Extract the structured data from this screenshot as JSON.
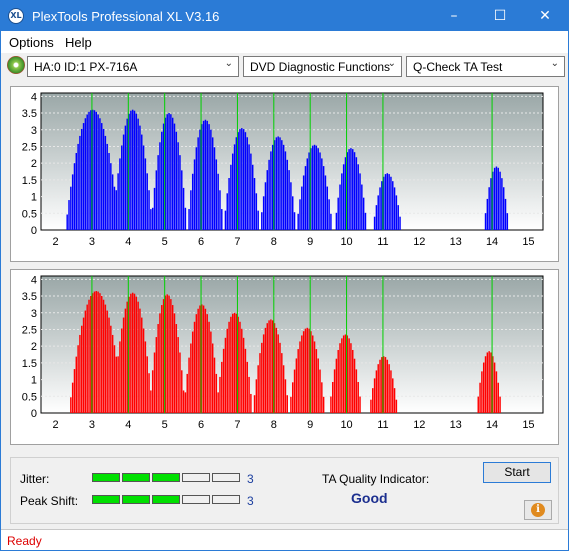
{
  "window": {
    "title": "PlexTools Professional XL V3.16",
    "icon_text": "XL",
    "controls": {
      "minimize": "–",
      "maximize": "☐",
      "close": "✕"
    }
  },
  "menu": {
    "items": [
      "Options",
      "Help"
    ]
  },
  "toolbar": {
    "drive": "HA:0 ID:1  PX-716A",
    "function": "DVD Diagnostic Functions",
    "test": "Q-Check TA Test",
    "arrow": "⌄"
  },
  "charts": {
    "x_ticks": [
      "2",
      "3",
      "4",
      "5",
      "6",
      "7",
      "8",
      "9",
      "10",
      "11",
      "12",
      "13",
      "14",
      "15"
    ],
    "y_ticks": [
      "4",
      "3.5",
      "3",
      "2.5",
      "2",
      "1.5",
      "1",
      "0.5",
      "0"
    ]
  },
  "chart_data": [
    {
      "type": "bar",
      "color": "#0000ff",
      "xlim": [
        1.6,
        15.4
      ],
      "ylim": [
        0,
        4.1
      ],
      "grid": true,
      "peaks": [
        {
          "x": 3.0,
          "y": 3.6,
          "halfwidth": 0.75
        },
        {
          "x": 4.1,
          "y": 3.6,
          "halfwidth": 0.55
        },
        {
          "x": 5.1,
          "y": 3.5,
          "halfwidth": 0.5
        },
        {
          "x": 6.1,
          "y": 3.3,
          "halfwidth": 0.5
        },
        {
          "x": 7.1,
          "y": 3.05,
          "halfwidth": 0.5
        },
        {
          "x": 8.1,
          "y": 2.8,
          "halfwidth": 0.5
        },
        {
          "x": 9.1,
          "y": 2.55,
          "halfwidth": 0.5
        },
        {
          "x": 10.1,
          "y": 2.45,
          "halfwidth": 0.45
        },
        {
          "x": 11.1,
          "y": 1.7,
          "halfwidth": 0.4
        },
        {
          "x": 14.1,
          "y": 1.9,
          "halfwidth": 0.35
        }
      ]
    },
    {
      "type": "bar",
      "color": "#ff0000",
      "xlim": [
        1.6,
        15.4
      ],
      "ylim": [
        0,
        4.1
      ],
      "grid": true,
      "peaks": [
        {
          "x": 3.1,
          "y": 3.65,
          "halfwidth": 0.75
        },
        {
          "x": 4.1,
          "y": 3.6,
          "halfwidth": 0.55
        },
        {
          "x": 5.05,
          "y": 3.55,
          "halfwidth": 0.5
        },
        {
          "x": 6.0,
          "y": 3.25,
          "halfwidth": 0.5
        },
        {
          "x": 6.9,
          "y": 3.0,
          "halfwidth": 0.5
        },
        {
          "x": 7.9,
          "y": 2.8,
          "halfwidth": 0.5
        },
        {
          "x": 8.9,
          "y": 2.55,
          "halfwidth": 0.5
        },
        {
          "x": 9.95,
          "y": 2.35,
          "halfwidth": 0.45
        },
        {
          "x": 11.0,
          "y": 1.7,
          "halfwidth": 0.4
        },
        {
          "x": 13.9,
          "y": 1.85,
          "halfwidth": 0.35
        }
      ]
    }
  ],
  "metrics": {
    "jitter_label": "Jitter:",
    "jitter_value": "3",
    "jitter_level": 3,
    "peak_label": "Peak Shift:",
    "peak_value": "3",
    "peak_level": 3,
    "segments": 5,
    "on_color": "#00e000",
    "ta_label": "TA Quality Indicator:",
    "ta_value": "Good"
  },
  "buttons": {
    "start": "Start",
    "info": "i"
  },
  "status": {
    "text": "Ready"
  }
}
